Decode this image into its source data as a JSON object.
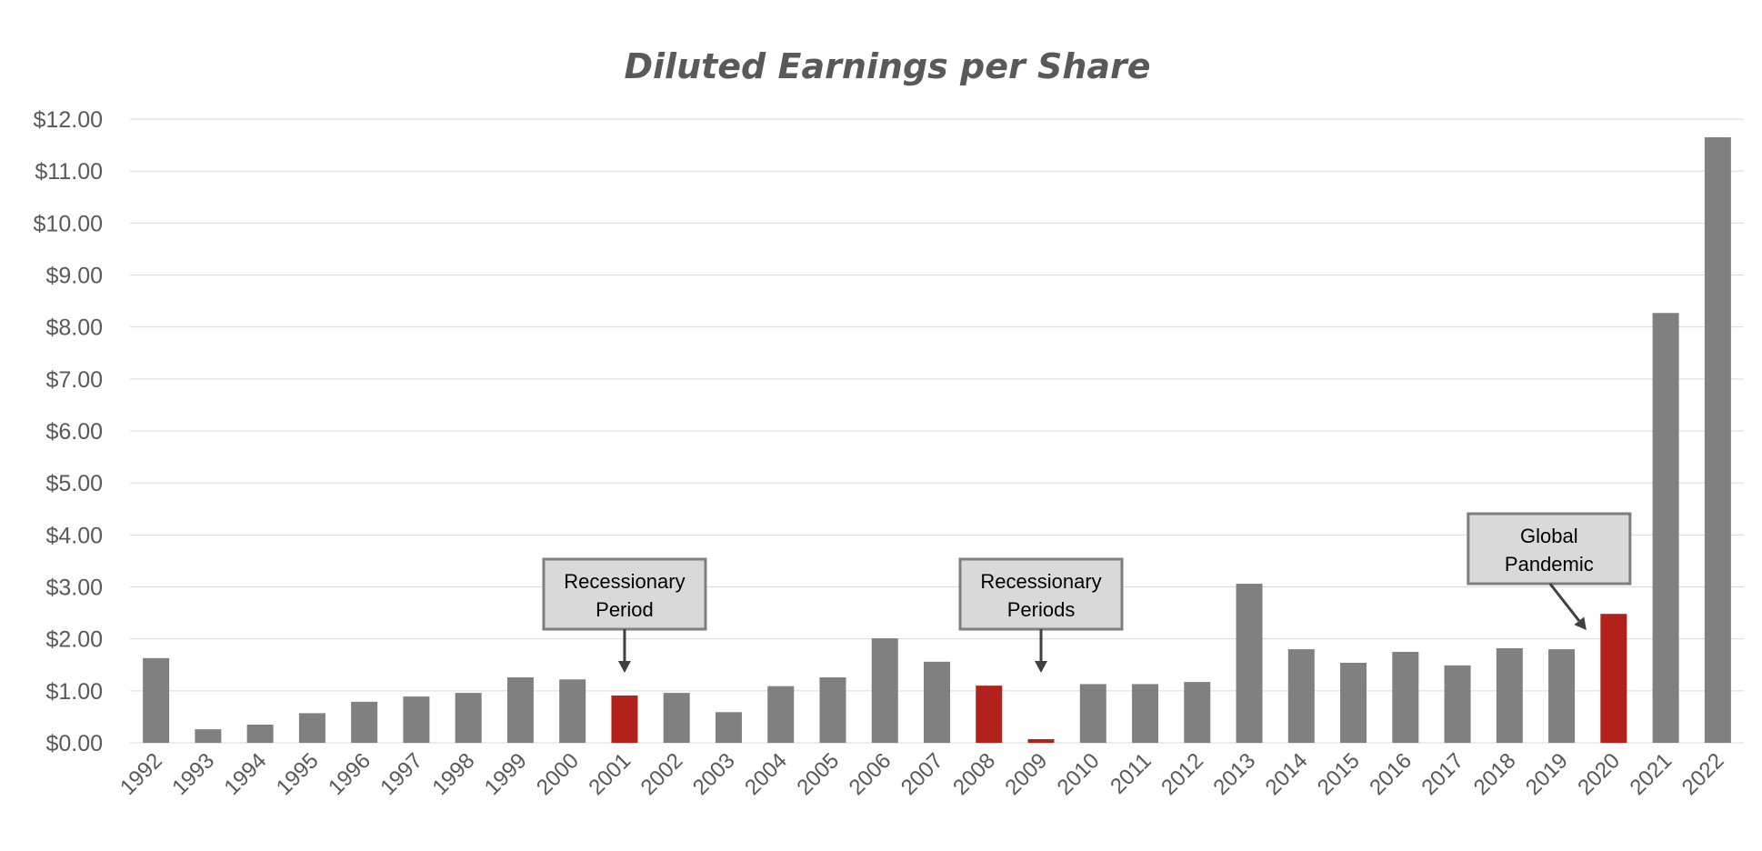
{
  "chart_data": {
    "type": "bar",
    "title": "Diluted Earnings per Share",
    "xlabel": "",
    "ylabel": "",
    "ylim": [
      0,
      12
    ],
    "yticks": [
      "$0.00",
      "$1.00",
      "$2.00",
      "$3.00",
      "$4.00",
      "$5.00",
      "$6.00",
      "$7.00",
      "$8.00",
      "$9.00",
      "$10.00",
      "$11.00",
      "$12.00"
    ],
    "grid": true,
    "legend": "none",
    "categories": [
      "1992",
      "1993",
      "1994",
      "1995",
      "1996",
      "1997",
      "1998",
      "1999",
      "2000",
      "2001",
      "2002",
      "2003",
      "2004",
      "2005",
      "2006",
      "2007",
      "2008",
      "2009",
      "2010",
      "2011",
      "2012",
      "2013",
      "2014",
      "2015",
      "2016",
      "2017",
      "2018",
      "2019",
      "2020",
      "2021",
      "2022"
    ],
    "values": [
      1.63,
      0.26,
      0.35,
      0.57,
      0.79,
      0.89,
      0.96,
      1.26,
      1.22,
      0.91,
      0.96,
      0.59,
      1.09,
      1.26,
      2.01,
      1.56,
      1.1,
      0.07,
      1.13,
      1.13,
      1.17,
      3.06,
      1.8,
      1.54,
      1.75,
      1.49,
      1.82,
      1.8,
      2.48,
      8.27,
      11.65
    ],
    "highlighted_categories": [
      "2001",
      "2008",
      "2009",
      "2020"
    ],
    "colors": {
      "bar": "#808080",
      "highlight": "#b2221b"
    },
    "annotations": [
      {
        "lines": [
          "Recessionary",
          "Period"
        ],
        "target": "2001",
        "arrow": "down"
      },
      {
        "lines": [
          "Recessionary",
          "Periods"
        ],
        "target": "2009",
        "arrow": "down"
      },
      {
        "lines": [
          "Global",
          "Pandemic"
        ],
        "target": "2020",
        "arrow": "diagonal"
      }
    ]
  }
}
